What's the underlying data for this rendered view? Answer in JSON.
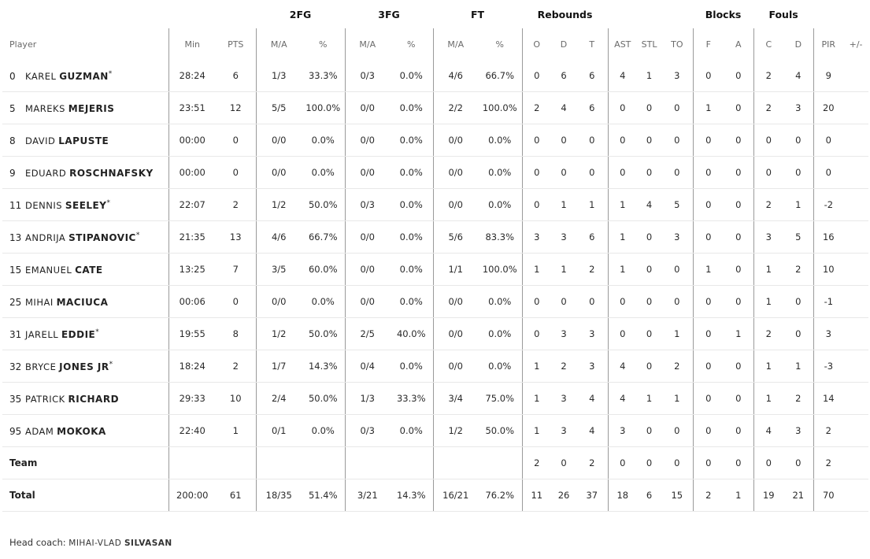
{
  "groups": {
    "fg2": "2FG",
    "fg3": "3FG",
    "ft": "FT",
    "rebounds": "Rebounds",
    "blocks": "Blocks",
    "fouls": "Fouls"
  },
  "columns": {
    "player": "Player",
    "min": "Min",
    "pts": "PTS",
    "fg2_ma": "M/A",
    "fg2_pct": "%",
    "fg3_ma": "M/A",
    "fg3_pct": "%",
    "ft_ma": "M/A",
    "ft_pct": "%",
    "reb_o": "O",
    "reb_d": "D",
    "reb_t": "T",
    "ast": "AST",
    "stl": "STL",
    "to": "TO",
    "blk_f": "F",
    "blk_a": "A",
    "foul_c": "C",
    "foul_d": "D",
    "pir": "PIR",
    "pm": "+/-"
  },
  "players": [
    {
      "num": "0",
      "first": "KAREL",
      "last": "GUZMAN",
      "star": "*",
      "min": "28:24",
      "pts": "6",
      "fg2_ma": "1/3",
      "fg2_pct": "33.3%",
      "fg3_ma": "0/3",
      "fg3_pct": "0.0%",
      "ft_ma": "4/6",
      "ft_pct": "66.7%",
      "reb_o": "0",
      "reb_d": "6",
      "reb_t": "6",
      "ast": "4",
      "stl": "1",
      "to": "3",
      "blk_f": "0",
      "blk_a": "0",
      "foul_c": "2",
      "foul_d": "4",
      "pir": "9",
      "pm": ""
    },
    {
      "num": "5",
      "first": "MAREKS",
      "last": "MEJERIS",
      "star": "",
      "min": "23:51",
      "pts": "12",
      "fg2_ma": "5/5",
      "fg2_pct": "100.0%",
      "fg3_ma": "0/0",
      "fg3_pct": "0.0%",
      "ft_ma": "2/2",
      "ft_pct": "100.0%",
      "reb_o": "2",
      "reb_d": "4",
      "reb_t": "6",
      "ast": "0",
      "stl": "0",
      "to": "0",
      "blk_f": "1",
      "blk_a": "0",
      "foul_c": "2",
      "foul_d": "3",
      "pir": "20",
      "pm": ""
    },
    {
      "num": "8",
      "first": "DAVID",
      "last": "LAPUSTE",
      "star": "",
      "min": "00:00",
      "pts": "0",
      "fg2_ma": "0/0",
      "fg2_pct": "0.0%",
      "fg3_ma": "0/0",
      "fg3_pct": "0.0%",
      "ft_ma": "0/0",
      "ft_pct": "0.0%",
      "reb_o": "0",
      "reb_d": "0",
      "reb_t": "0",
      "ast": "0",
      "stl": "0",
      "to": "0",
      "blk_f": "0",
      "blk_a": "0",
      "foul_c": "0",
      "foul_d": "0",
      "pir": "0",
      "pm": ""
    },
    {
      "num": "9",
      "first": "EDUARD",
      "last": "ROSCHNAFSKY",
      "star": "",
      "min": "00:00",
      "pts": "0",
      "fg2_ma": "0/0",
      "fg2_pct": "0.0%",
      "fg3_ma": "0/0",
      "fg3_pct": "0.0%",
      "ft_ma": "0/0",
      "ft_pct": "0.0%",
      "reb_o": "0",
      "reb_d": "0",
      "reb_t": "0",
      "ast": "0",
      "stl": "0",
      "to": "0",
      "blk_f": "0",
      "blk_a": "0",
      "foul_c": "0",
      "foul_d": "0",
      "pir": "0",
      "pm": ""
    },
    {
      "num": "11",
      "first": "DENNIS",
      "last": "SEELEY",
      "star": "*",
      "min": "22:07",
      "pts": "2",
      "fg2_ma": "1/2",
      "fg2_pct": "50.0%",
      "fg3_ma": "0/3",
      "fg3_pct": "0.0%",
      "ft_ma": "0/0",
      "ft_pct": "0.0%",
      "reb_o": "0",
      "reb_d": "1",
      "reb_t": "1",
      "ast": "1",
      "stl": "4",
      "to": "5",
      "blk_f": "0",
      "blk_a": "0",
      "foul_c": "2",
      "foul_d": "1",
      "pir": "-2",
      "pm": ""
    },
    {
      "num": "13",
      "first": "ANDRIJA",
      "last": "STIPANOVIC",
      "star": "*",
      "min": "21:35",
      "pts": "13",
      "fg2_ma": "4/6",
      "fg2_pct": "66.7%",
      "fg3_ma": "0/0",
      "fg3_pct": "0.0%",
      "ft_ma": "5/6",
      "ft_pct": "83.3%",
      "reb_o": "3",
      "reb_d": "3",
      "reb_t": "6",
      "ast": "1",
      "stl": "0",
      "to": "3",
      "blk_f": "0",
      "blk_a": "0",
      "foul_c": "3",
      "foul_d": "5",
      "pir": "16",
      "pm": ""
    },
    {
      "num": "15",
      "first": "EMANUEL",
      "last": "CATE",
      "star": "",
      "min": "13:25",
      "pts": "7",
      "fg2_ma": "3/5",
      "fg2_pct": "60.0%",
      "fg3_ma": "0/0",
      "fg3_pct": "0.0%",
      "ft_ma": "1/1",
      "ft_pct": "100.0%",
      "reb_o": "1",
      "reb_d": "1",
      "reb_t": "2",
      "ast": "1",
      "stl": "0",
      "to": "0",
      "blk_f": "1",
      "blk_a": "0",
      "foul_c": "1",
      "foul_d": "2",
      "pir": "10",
      "pm": ""
    },
    {
      "num": "25",
      "first": "MIHAI",
      "last": "MACIUCA",
      "star": "",
      "min": "00:06",
      "pts": "0",
      "fg2_ma": "0/0",
      "fg2_pct": "0.0%",
      "fg3_ma": "0/0",
      "fg3_pct": "0.0%",
      "ft_ma": "0/0",
      "ft_pct": "0.0%",
      "reb_o": "0",
      "reb_d": "0",
      "reb_t": "0",
      "ast": "0",
      "stl": "0",
      "to": "0",
      "blk_f": "0",
      "blk_a": "0",
      "foul_c": "1",
      "foul_d": "0",
      "pir": "-1",
      "pm": ""
    },
    {
      "num": "31",
      "first": "JARELL",
      "last": "EDDIE",
      "star": "*",
      "min": "19:55",
      "pts": "8",
      "fg2_ma": "1/2",
      "fg2_pct": "50.0%",
      "fg3_ma": "2/5",
      "fg3_pct": "40.0%",
      "ft_ma": "0/0",
      "ft_pct": "0.0%",
      "reb_o": "0",
      "reb_d": "3",
      "reb_t": "3",
      "ast": "0",
      "stl": "0",
      "to": "1",
      "blk_f": "0",
      "blk_a": "1",
      "foul_c": "2",
      "foul_d": "0",
      "pir": "3",
      "pm": ""
    },
    {
      "num": "32",
      "first": "BRYCE",
      "last": "JONES JR",
      "star": "*",
      "min": "18:24",
      "pts": "2",
      "fg2_ma": "1/7",
      "fg2_pct": "14.3%",
      "fg3_ma": "0/4",
      "fg3_pct": "0.0%",
      "ft_ma": "0/0",
      "ft_pct": "0.0%",
      "reb_o": "1",
      "reb_d": "2",
      "reb_t": "3",
      "ast": "4",
      "stl": "0",
      "to": "2",
      "blk_f": "0",
      "blk_a": "0",
      "foul_c": "1",
      "foul_d": "1",
      "pir": "-3",
      "pm": ""
    },
    {
      "num": "35",
      "first": "PATRICK",
      "last": "RICHARD",
      "star": "",
      "min": "29:33",
      "pts": "10",
      "fg2_ma": "2/4",
      "fg2_pct": "50.0%",
      "fg3_ma": "1/3",
      "fg3_pct": "33.3%",
      "ft_ma": "3/4",
      "ft_pct": "75.0%",
      "reb_o": "1",
      "reb_d": "3",
      "reb_t": "4",
      "ast": "4",
      "stl": "1",
      "to": "1",
      "blk_f": "0",
      "blk_a": "0",
      "foul_c": "1",
      "foul_d": "2",
      "pir": "14",
      "pm": ""
    },
    {
      "num": "95",
      "first": "ADAM",
      "last": "MOKOKA",
      "star": "",
      "min": "22:40",
      "pts": "1",
      "fg2_ma": "0/1",
      "fg2_pct": "0.0%",
      "fg3_ma": "0/3",
      "fg3_pct": "0.0%",
      "ft_ma": "1/2",
      "ft_pct": "50.0%",
      "reb_o": "1",
      "reb_d": "3",
      "reb_t": "4",
      "ast": "3",
      "stl": "0",
      "to": "0",
      "blk_f": "0",
      "blk_a": "0",
      "foul_c": "4",
      "foul_d": "3",
      "pir": "2",
      "pm": ""
    }
  ],
  "team": {
    "label": "Team",
    "min": "",
    "pts": "",
    "fg2_ma": "",
    "fg2_pct": "",
    "fg3_ma": "",
    "fg3_pct": "",
    "ft_ma": "",
    "ft_pct": "",
    "reb_o": "2",
    "reb_d": "0",
    "reb_t": "2",
    "ast": "0",
    "stl": "0",
    "to": "0",
    "blk_f": "0",
    "blk_a": "0",
    "foul_c": "0",
    "foul_d": "0",
    "pir": "2",
    "pm": ""
  },
  "total": {
    "label": "Total",
    "min": "200:00",
    "pts": "61",
    "fg2_ma": "18/35",
    "fg2_pct": "51.4%",
    "fg3_ma": "3/21",
    "fg3_pct": "14.3%",
    "ft_ma": "16/21",
    "ft_pct": "76.2%",
    "reb_o": "11",
    "reb_d": "26",
    "reb_t": "37",
    "ast": "18",
    "stl": "6",
    "to": "15",
    "blk_f": "2",
    "blk_a": "1",
    "foul_c": "19",
    "foul_d": "21",
    "pir": "70",
    "pm": ""
  },
  "coach": {
    "label": "Head coach:",
    "first": "MIHAI-VLAD",
    "last": "SILVASAN"
  }
}
